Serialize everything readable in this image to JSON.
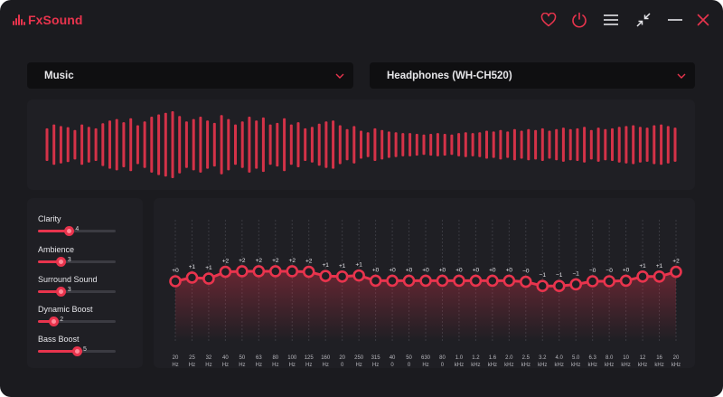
{
  "app": {
    "name": "FxSound"
  },
  "titlebar": {
    "icons": [
      "heart-icon",
      "power-icon",
      "menu-icon",
      "minimize-view-icon",
      "minimize-icon",
      "close-icon"
    ]
  },
  "preset": {
    "selected": "Music"
  },
  "output_device": {
    "selected": "Headphones (WH-CH520)"
  },
  "visualizer": {
    "levels": [
      0.42,
      0.52,
      0.48,
      0.45,
      0.38,
      0.52,
      0.46,
      0.42,
      0.55,
      0.62,
      0.66,
      0.58,
      0.68,
      0.5,
      0.6,
      0.72,
      0.78,
      0.82,
      0.86,
      0.74,
      0.6,
      0.66,
      0.72,
      0.62,
      0.56,
      0.76,
      0.66,
      0.52,
      0.6,
      0.72,
      0.62,
      0.7,
      0.52,
      0.56,
      0.68,
      0.52,
      0.58,
      0.42,
      0.46,
      0.54,
      0.6,
      0.62,
      0.5,
      0.4,
      0.48,
      0.36,
      0.32,
      0.42,
      0.38,
      0.34,
      0.32,
      0.3,
      0.3,
      0.28,
      0.26,
      0.28,
      0.3,
      0.28,
      0.26,
      0.3,
      0.32,
      0.3,
      0.32,
      0.36,
      0.34,
      0.38,
      0.34,
      0.4,
      0.36,
      0.4,
      0.38,
      0.42,
      0.36,
      0.4,
      0.44,
      0.4,
      0.42,
      0.46,
      0.38,
      0.44,
      0.4,
      0.42,
      0.46,
      0.48,
      0.5,
      0.46,
      0.44,
      0.5,
      0.52,
      0.48,
      0.44
    ]
  },
  "effects": [
    {
      "label": "Clarity",
      "value": 4
    },
    {
      "label": "Ambience",
      "value": 3
    },
    {
      "label": "Surround Sound",
      "value": 3
    },
    {
      "label": "Dynamic Boost",
      "value": 2
    },
    {
      "label": "Bass Boost",
      "value": 5
    }
  ],
  "equalizer": {
    "bands": [
      {
        "freq": [
          "20",
          "Hz"
        ],
        "gain": "+0"
      },
      {
        "freq": [
          "25",
          "Hz"
        ],
        "gain": "+1"
      },
      {
        "freq": [
          "32",
          "Hz"
        ],
        "gain": "+1"
      },
      {
        "freq": [
          "40",
          "Hz"
        ],
        "gain": "+2"
      },
      {
        "freq": [
          "50",
          "Hz"
        ],
        "gain": "+2"
      },
      {
        "freq": [
          "63",
          "Hz"
        ],
        "gain": "+2"
      },
      {
        "freq": [
          "80",
          "Hz"
        ],
        "gain": "+2"
      },
      {
        "freq": [
          "100",
          "Hz"
        ],
        "gain": "+2"
      },
      {
        "freq": [
          "125",
          "Hz"
        ],
        "gain": "+2"
      },
      {
        "freq": [
          "160",
          "Hz"
        ],
        "gain": "+1"
      },
      {
        "freq": [
          "20",
          "0"
        ],
        "gain": "+1"
      },
      {
        "freq": [
          "250",
          "Hz"
        ],
        "gain": "+1"
      },
      {
        "freq": [
          "315",
          "Hz"
        ],
        "gain": "+0"
      },
      {
        "freq": [
          "40",
          "0"
        ],
        "gain": "+0"
      },
      {
        "freq": [
          "50",
          "0"
        ],
        "gain": "+0"
      },
      {
        "freq": [
          "630",
          "Hz"
        ],
        "gain": "+0"
      },
      {
        "freq": [
          "80",
          "0"
        ],
        "gain": "+0"
      },
      {
        "freq": [
          "1.0",
          "kHz"
        ],
        "gain": "+0"
      },
      {
        "freq": [
          "1.2",
          "kHz"
        ],
        "gain": "+0"
      },
      {
        "freq": [
          "1.6",
          "kHz"
        ],
        "gain": "+0"
      },
      {
        "freq": [
          "2.0",
          "kHz"
        ],
        "gain": "+0"
      },
      {
        "freq": [
          "2.5",
          "kHz"
        ],
        "gain": "−0"
      },
      {
        "freq": [
          "3.2",
          "kHz"
        ],
        "gain": "−1"
      },
      {
        "freq": [
          "4.0",
          "kHz"
        ],
        "gain": "−1"
      },
      {
        "freq": [
          "5.0",
          "kHz"
        ],
        "gain": "−1"
      },
      {
        "freq": [
          "6.3",
          "kHz"
        ],
        "gain": "−0"
      },
      {
        "freq": [
          "8.0",
          "kHz"
        ],
        "gain": "−0"
      },
      {
        "freq": [
          "10",
          "kHz"
        ],
        "gain": "+0"
      },
      {
        "freq": [
          "12",
          "kHz"
        ],
        "gain": "+1"
      },
      {
        "freq": [
          "16",
          "kHz"
        ],
        "gain": "+1"
      },
      {
        "freq": [
          "20",
          "kHz"
        ],
        "gain": "+2"
      }
    ],
    "gain_values": [
      0,
      0.7,
      0.5,
      1.8,
      1.9,
      1.9,
      1.9,
      1.9,
      1.8,
      1.0,
      0.9,
      1.1,
      0.1,
      0.1,
      0.1,
      0.1,
      0.1,
      0.1,
      0.1,
      0.1,
      0.1,
      -0.1,
      -0.9,
      -0.9,
      -0.6,
      0.0,
      0.0,
      0.1,
      0.9,
      0.9,
      1.8
    ]
  },
  "colors": {
    "accent": "#e8344d",
    "background": "#1b1b1f",
    "panel": "#1f1f24",
    "dropdown": "#0f0f11"
  }
}
